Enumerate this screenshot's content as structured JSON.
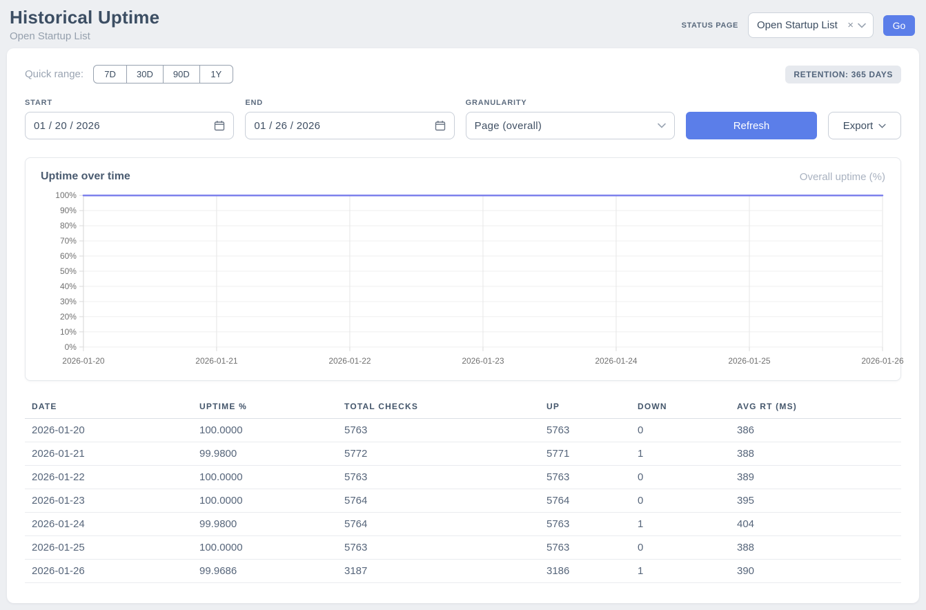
{
  "header": {
    "title": "Historical Uptime",
    "subtitle": "Open Startup List",
    "status_page_label": "STATUS PAGE",
    "status_page_value": "Open Startup List",
    "clear_icon": "×",
    "go_label": "Go"
  },
  "filters": {
    "quick_range_label": "Quick range:",
    "quick_ranges": [
      "7D",
      "30D",
      "90D",
      "1Y"
    ],
    "retention_badge": "RETENTION: 365 DAYS",
    "start_label": "START",
    "start_value": "01 / 20 / 2026",
    "end_label": "END",
    "end_value": "01 / 26 / 2026",
    "granularity_label": "GRANULARITY",
    "granularity_value": "Page (overall)",
    "refresh_label": "Refresh",
    "export_label": "Export"
  },
  "chart_card": {
    "title": "Uptime over time",
    "legend": "Overall uptime (%)"
  },
  "chart_data": {
    "type": "line",
    "title": "Uptime over time",
    "categories": [
      "2026-01-20",
      "2026-01-21",
      "2026-01-22",
      "2026-01-23",
      "2026-01-24",
      "2026-01-25",
      "2026-01-26"
    ],
    "series": [
      {
        "name": "Overall uptime (%)",
        "values": [
          100.0,
          99.98,
          100.0,
          100.0,
          99.98,
          100.0,
          99.9686
        ]
      }
    ],
    "ylim": [
      0,
      100
    ],
    "y_tick_step": 10,
    "y_tick_suffix": "%",
    "grid": true,
    "legend_position": "top-right",
    "line_color": "#7c80ec"
  },
  "table": {
    "columns": [
      "DATE",
      "UPTIME %",
      "TOTAL CHECKS",
      "UP",
      "DOWN",
      "AVG RT (MS)"
    ],
    "rows": [
      [
        "2026-01-20",
        "100.0000",
        "5763",
        "5763",
        "0",
        "386"
      ],
      [
        "2026-01-21",
        "99.9800",
        "5772",
        "5771",
        "1",
        "388"
      ],
      [
        "2026-01-22",
        "100.0000",
        "5763",
        "5763",
        "0",
        "389"
      ],
      [
        "2026-01-23",
        "100.0000",
        "5764",
        "5764",
        "0",
        "395"
      ],
      [
        "2026-01-24",
        "99.9800",
        "5764",
        "5763",
        "1",
        "404"
      ],
      [
        "2026-01-25",
        "100.0000",
        "5763",
        "5763",
        "0",
        "388"
      ],
      [
        "2026-01-26",
        "99.9686",
        "3187",
        "3186",
        "1",
        "390"
      ]
    ]
  },
  "colors": {
    "accent_blue": "#5b7ee9",
    "line_color": "#7c80ec",
    "grid_color": "#e6e6e6",
    "tick_text": "#707070"
  }
}
